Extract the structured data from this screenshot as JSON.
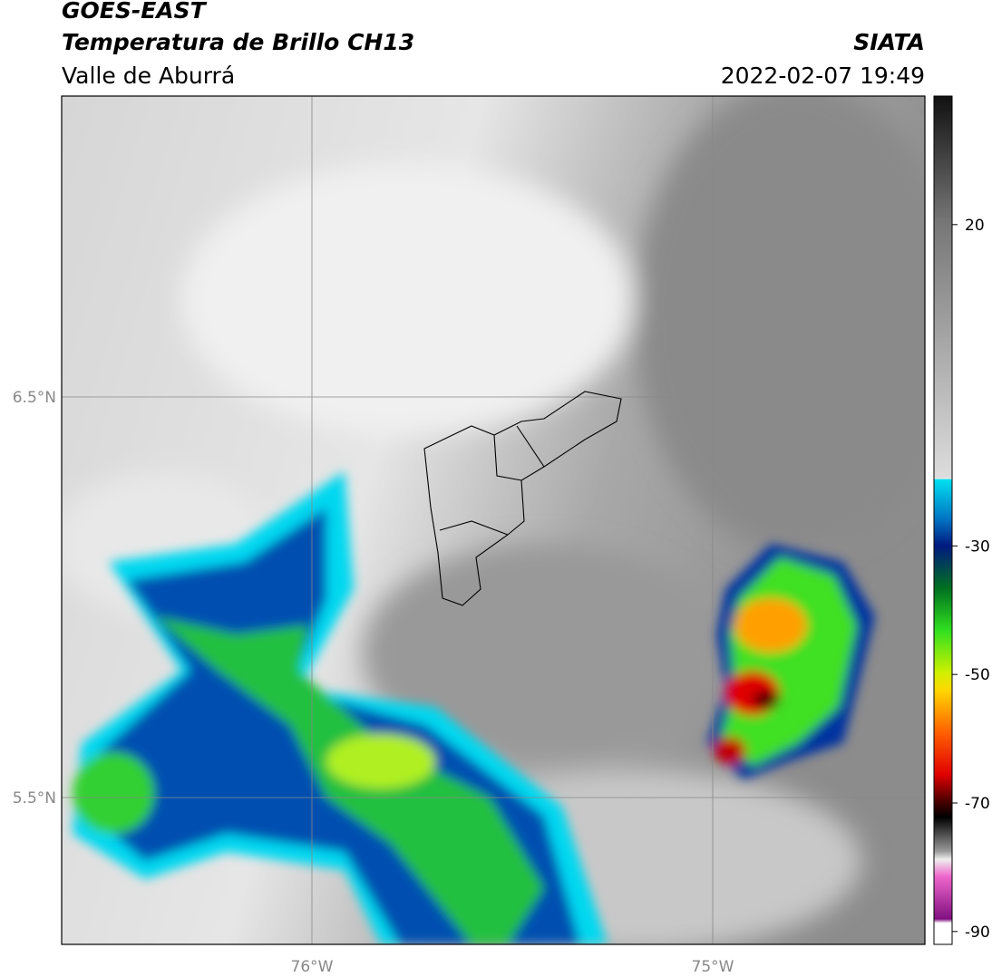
{
  "header": {
    "title": "GOES-EAST",
    "subtitle": "Temperatura de Brillo CH13",
    "source": "SIATA",
    "region": "Valle de Aburrá",
    "datetime": "2022-02-07 19:49"
  },
  "map": {
    "lat_labels": [
      "6.5°N",
      "5.5°N"
    ],
    "lon_labels": [
      "76°W",
      "75°W"
    ]
  },
  "colorbar": {
    "vlim": [
      -92,
      40
    ],
    "ticks": [
      20,
      -30,
      -50,
      -70,
      -90
    ]
  }
}
